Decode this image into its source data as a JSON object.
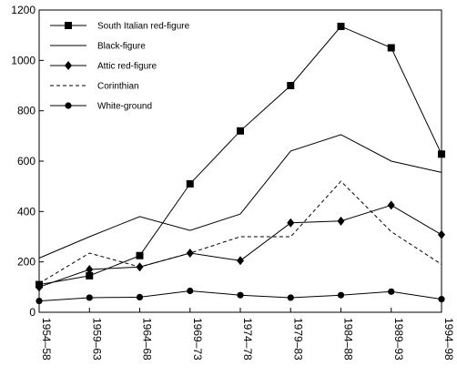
{
  "chart_data": {
    "type": "line",
    "title": "",
    "xlabel": "",
    "ylabel": "",
    "categories": [
      "1954–58",
      "1959–63",
      "1964–68",
      "1969–73",
      "1974–78",
      "1979–83",
      "1984–88",
      "1989–93",
      "1994–98"
    ],
    "ylim": [
      0,
      1200
    ],
    "yticks": [
      "0",
      "200",
      "400",
      "600",
      "800",
      "1000",
      "1200"
    ],
    "grid": false,
    "legend_position": "top-left",
    "series": [
      {
        "name": "South Italian red-figure",
        "marker": "square",
        "line": "solid",
        "values": [
          110,
          145,
          225,
          510,
          720,
          900,
          1135,
          1050,
          628
        ]
      },
      {
        "name": "Black-figure",
        "marker": "none",
        "line": "solid",
        "values": [
          215,
          300,
          380,
          325,
          390,
          640,
          705,
          600,
          555
        ]
      },
      {
        "name": "Attic red-figure",
        "marker": "diamond",
        "line": "solid",
        "values": [
          100,
          170,
          180,
          235,
          205,
          355,
          362,
          425,
          308
        ]
      },
      {
        "name": "Corinthian",
        "marker": "none",
        "line": "dashed",
        "values": [
          115,
          235,
          180,
          235,
          300,
          300,
          520,
          320,
          190
        ]
      },
      {
        "name": "White-ground",
        "marker": "circle",
        "line": "solid",
        "values": [
          45,
          58,
          60,
          85,
          68,
          58,
          68,
          82,
          52
        ]
      }
    ]
  }
}
